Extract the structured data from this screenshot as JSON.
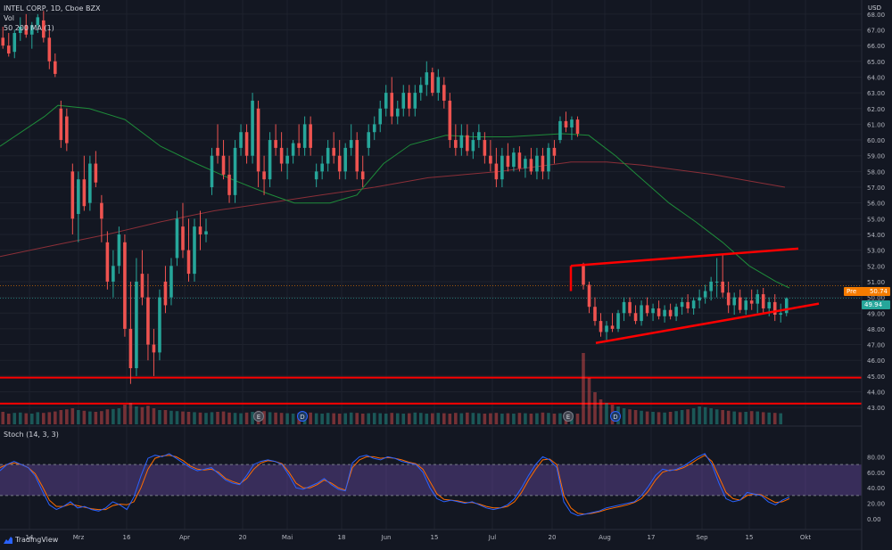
{
  "header": {
    "symbol_line": "INTEL CORP, 1D, Cboe BZX",
    "vol_label": "Vol",
    "ma_label": "50 200 MA (1)"
  },
  "stoch_label": "Stoch (14, 3, 3)",
  "currency": "USD",
  "brand": "TradingView",
  "price_tags": {
    "pre_label": "Pre",
    "pre_value": "50.74",
    "last_value": "49.94"
  },
  "colors": {
    "background": "#131722",
    "up": "#26a69a",
    "down": "#ef5350",
    "ma50": "#1e8c3a",
    "ma200": "#8b2f38",
    "stoch_k": "#2962ff",
    "stoch_d": "#ff6d00",
    "stoch_band": "#7e57c2",
    "trendline": "#ff0000"
  },
  "chart_data": {
    "type": "candlestick",
    "y_axis_ticks": [
      "68.00",
      "67.00",
      "66.00",
      "65.00",
      "64.00",
      "63.00",
      "62.00",
      "61.00",
      "60.00",
      "59.00",
      "58.00",
      "57.00",
      "56.00",
      "55.00",
      "54.00",
      "53.00",
      "52.00",
      "51.00",
      "50.00",
      "49.00",
      "48.00",
      "47.00",
      "46.00",
      "45.00",
      "44.00",
      "43.00"
    ],
    "ylim": [
      42.5,
      68.5
    ],
    "x_axis_ticks": [
      "14",
      "Mrz",
      "16",
      "Apr",
      "20",
      "Mai",
      "18",
      "Jun",
      "15",
      "Jul",
      "20",
      "Aug",
      "17",
      "Sep",
      "15",
      "Okt"
    ],
    "stoch_ticks": [
      "80.00",
      "60.00",
      "40.00",
      "20.00",
      "0.00"
    ],
    "stoch_bands": [
      20,
      80
    ],
    "earnings_markers": [
      "E",
      "D",
      "E",
      "D"
    ],
    "horizontal_lines": [
      44.9,
      43.25
    ],
    "candles": [
      [
        66.5,
        67.2,
        65.8,
        66.0
      ],
      [
        66.0,
        66.8,
        65.3,
        65.5
      ],
      [
        65.6,
        67.0,
        65.2,
        66.8
      ],
      [
        66.8,
        67.8,
        66.3,
        67.2
      ],
      [
        67.3,
        68.0,
        66.5,
        66.7
      ],
      [
        66.7,
        67.5,
        65.8,
        67.3
      ],
      [
        67.3,
        68.0,
        66.8,
        67.8
      ],
      [
        67.6,
        68.2,
        66.2,
        66.5
      ],
      [
        66.5,
        67.0,
        64.5,
        65.0
      ],
      [
        65.0,
        65.5,
        64.0,
        64.2
      ],
      [
        62.0,
        62.5,
        59.5,
        60.0
      ],
      [
        61.5,
        62.0,
        59.3,
        59.8
      ],
      [
        58.0,
        58.5,
        54.0,
        55.0
      ],
      [
        55.3,
        58.0,
        53.5,
        57.5
      ],
      [
        57.5,
        59.0,
        55.5,
        55.8
      ],
      [
        56.0,
        59.0,
        55.5,
        58.5
      ],
      [
        58.5,
        59.3,
        57.0,
        57.3
      ],
      [
        56.0,
        56.5,
        53.5,
        55.0
      ],
      [
        53.5,
        54.2,
        50.5,
        51.0
      ],
      [
        51.0,
        53.0,
        50.0,
        52.0
      ],
      [
        52.0,
        54.5,
        51.5,
        54.0
      ],
      [
        53.5,
        54.0,
        47.5,
        48.0
      ],
      [
        48.0,
        51.0,
        44.5,
        45.5
      ],
      [
        45.5,
        52.5,
        45.0,
        51.0
      ],
      [
        51.5,
        53.0,
        49.5,
        50.0
      ],
      [
        50.0,
        51.5,
        46.0,
        47.0
      ],
      [
        47.0,
        48.0,
        45.0,
        46.5
      ],
      [
        46.5,
        50.5,
        46.0,
        50.0
      ],
      [
        51.0,
        52.0,
        49.0,
        49.5
      ],
      [
        50.0,
        52.5,
        49.5,
        52.0
      ],
      [
        52.5,
        55.5,
        52.0,
        55.0
      ],
      [
        54.5,
        56.0,
        52.5,
        53.0
      ],
      [
        53.0,
        55.0,
        51.0,
        51.5
      ],
      [
        51.5,
        55.0,
        51.0,
        54.5
      ],
      [
        54.5,
        55.5,
        53.0,
        54.0
      ],
      [
        54.0,
        55.0,
        53.5,
        54.2
      ],
      [
        57.0,
        59.5,
        56.5,
        59.0
      ],
      [
        59.5,
        61.0,
        58.5,
        59.0
      ],
      [
        59.0,
        60.0,
        57.5,
        57.8
      ],
      [
        57.8,
        59.0,
        56.0,
        56.5
      ],
      [
        56.5,
        60.0,
        56.0,
        59.5
      ],
      [
        59.5,
        61.0,
        59.0,
        60.5
      ],
      [
        60.5,
        61.0,
        58.5,
        59.0
      ],
      [
        59.0,
        63.0,
        58.5,
        62.5
      ],
      [
        62.0,
        62.5,
        57.0,
        58.0
      ],
      [
        58.0,
        59.0,
        56.5,
        57.5
      ],
      [
        57.5,
        60.5,
        57.0,
        60.0
      ],
      [
        60.0,
        61.0,
        59.0,
        59.5
      ],
      [
        59.5,
        60.5,
        58.0,
        58.5
      ],
      [
        58.5,
        59.5,
        57.5,
        59.0
      ],
      [
        59.0,
        60.0,
        58.5,
        59.8
      ],
      [
        59.8,
        61.0,
        59.0,
        59.5
      ],
      [
        59.5,
        61.5,
        59.0,
        61.0
      ],
      [
        61.0,
        61.5,
        59.0,
        59.5
      ],
      [
        57.5,
        58.5,
        57.0,
        58.0
      ],
      [
        58.0,
        59.0,
        57.5,
        58.5
      ],
      [
        58.5,
        60.0,
        58.0,
        59.5
      ],
      [
        59.5,
        60.5,
        58.5,
        59.0
      ],
      [
        59.0,
        60.0,
        57.5,
        58.0
      ],
      [
        58.0,
        59.8,
        57.5,
        59.5
      ],
      [
        59.5,
        61.0,
        59.0,
        60.0
      ],
      [
        60.0,
        60.5,
        57.5,
        58.0
      ],
      [
        58.0,
        59.0,
        57.0,
        57.5
      ],
      [
        59.5,
        61.0,
        59.0,
        60.5
      ],
      [
        60.5,
        61.5,
        60.0,
        61.0
      ],
      [
        61.0,
        62.5,
        60.5,
        62.0
      ],
      [
        62.0,
        63.5,
        61.5,
        63.0
      ],
      [
        63.0,
        64.0,
        61.0,
        61.5
      ],
      [
        61.5,
        62.5,
        61.0,
        62.0
      ],
      [
        62.0,
        63.5,
        61.5,
        63.0
      ],
      [
        63.0,
        63.5,
        61.5,
        62.0
      ],
      [
        62.0,
        63.5,
        61.5,
        63.0
      ],
      [
        63.0,
        64.0,
        62.5,
        63.5
      ],
      [
        63.5,
        65.0,
        62.8,
        64.3
      ],
      [
        64.3,
        64.6,
        62.8,
        63.0
      ],
      [
        63.0,
        64.5,
        62.5,
        64.0
      ],
      [
        63.5,
        64.0,
        62.0,
        62.5
      ],
      [
        62.5,
        63.0,
        59.5,
        60.0
      ],
      [
        60.0,
        61.0,
        59.0,
        59.5
      ],
      [
        59.5,
        61.0,
        59.0,
        60.3
      ],
      [
        60.3,
        61.0,
        59.0,
        59.3
      ],
      [
        59.3,
        60.5,
        58.8,
        60.0
      ],
      [
        60.0,
        61.0,
        59.5,
        60.5
      ],
      [
        60.0,
        60.5,
        58.5,
        59.0
      ],
      [
        59.0,
        60.0,
        58.0,
        58.5
      ],
      [
        58.5,
        59.5,
        57.0,
        57.5
      ],
      [
        57.5,
        59.5,
        57.0,
        59.0
      ],
      [
        59.0,
        59.8,
        58.0,
        58.3
      ],
      [
        58.3,
        59.5,
        58.0,
        59.2
      ],
      [
        59.2,
        59.6,
        58.0,
        58.2
      ],
      [
        58.2,
        59.0,
        57.6,
        58.8
      ],
      [
        58.8,
        59.5,
        57.8,
        58.0
      ],
      [
        58.0,
        59.5,
        57.5,
        59.0
      ],
      [
        59.0,
        59.5,
        57.5,
        58.0
      ],
      [
        58.0,
        59.8,
        57.5,
        59.5
      ],
      [
        59.5,
        60.0,
        58.5,
        59.0
      ],
      [
        60.0,
        61.5,
        59.8,
        61.2
      ],
      [
        61.2,
        61.8,
        60.5,
        60.8
      ],
      [
        60.8,
        61.5,
        60.0,
        61.3
      ],
      [
        61.3,
        61.5,
        60.2,
        60.4
      ],
      [
        52.0,
        52.2,
        50.5,
        50.8
      ],
      [
        50.8,
        51.0,
        49.0,
        49.4
      ],
      [
        49.4,
        50.0,
        48.2,
        48.5
      ],
      [
        48.5,
        49.0,
        47.5,
        47.8
      ],
      [
        47.8,
        48.5,
        47.3,
        48.2
      ],
      [
        48.2,
        49.0,
        47.8,
        48.0
      ],
      [
        48.0,
        49.2,
        47.8,
        49.0
      ],
      [
        49.0,
        50.0,
        48.5,
        49.7
      ],
      [
        49.7,
        50.0,
        48.8,
        49.0
      ],
      [
        49.0,
        49.5,
        48.3,
        48.5
      ],
      [
        48.5,
        49.8,
        48.2,
        49.5
      ],
      [
        49.5,
        50.0,
        48.8,
        49.0
      ],
      [
        49.0,
        49.6,
        48.5,
        49.3
      ],
      [
        49.3,
        49.8,
        48.6,
        48.8
      ],
      [
        48.8,
        49.5,
        48.4,
        49.2
      ],
      [
        49.2,
        49.6,
        48.6,
        48.8
      ],
      [
        48.8,
        49.6,
        48.5,
        49.4
      ],
      [
        49.4,
        50.0,
        48.9,
        49.7
      ],
      [
        49.7,
        50.2,
        49.0,
        49.3
      ],
      [
        49.3,
        50.0,
        48.9,
        49.8
      ],
      [
        49.8,
        50.5,
        49.3,
        50.0
      ],
      [
        50.0,
        50.8,
        49.6,
        50.4
      ],
      [
        50.4,
        51.3,
        49.8,
        51.0
      ],
      [
        51.0,
        52.5,
        50.0,
        51.0
      ],
      [
        51.0,
        52.7,
        50.0,
        50.3
      ],
      [
        50.3,
        51.0,
        49.0,
        49.5
      ],
      [
        49.5,
        50.3,
        48.9,
        50.0
      ],
      [
        50.0,
        50.5,
        49.0,
        49.2
      ],
      [
        49.2,
        50.0,
        48.9,
        49.8
      ],
      [
        49.8,
        50.5,
        49.2,
        49.6
      ],
      [
        49.6,
        50.5,
        49.0,
        50.2
      ],
      [
        50.2,
        50.6,
        49.0,
        49.3
      ],
      [
        49.3,
        50.0,
        48.8,
        49.7
      ],
      [
        49.7,
        50.2,
        48.5,
        48.9
      ],
      [
        48.9,
        49.6,
        48.4,
        49.0
      ],
      [
        49.0,
        50.0,
        48.8,
        49.94
      ]
    ],
    "volume": [
      0.35,
      0.3,
      0.32,
      0.33,
      0.31,
      0.3,
      0.34,
      0.32,
      0.34,
      0.36,
      0.4,
      0.42,
      0.45,
      0.4,
      0.38,
      0.36,
      0.35,
      0.37,
      0.42,
      0.43,
      0.45,
      0.55,
      0.6,
      0.5,
      0.48,
      0.52,
      0.45,
      0.4,
      0.4,
      0.38,
      0.37,
      0.36,
      0.35,
      0.34,
      0.33,
      0.32,
      0.34,
      0.35,
      0.36,
      0.33,
      0.32,
      0.31,
      0.33,
      0.35,
      0.38,
      0.37,
      0.34,
      0.33,
      0.32,
      0.31,
      0.3,
      0.32,
      0.34,
      0.33,
      0.31,
      0.3,
      0.32,
      0.31,
      0.3,
      0.31,
      0.33,
      0.32,
      0.3,
      0.31,
      0.32,
      0.31,
      0.3,
      0.32,
      0.31,
      0.3,
      0.31,
      0.33,
      0.32,
      0.3,
      0.31,
      0.32,
      0.31,
      0.3,
      0.32,
      0.31,
      0.33,
      0.32,
      0.31,
      0.3,
      0.31,
      0.32,
      0.3,
      0.31,
      0.3,
      0.32,
      0.31,
      0.3,
      0.31,
      0.33,
      0.32,
      0.3,
      0.31,
      0.32,
      0.31,
      0.3,
      2.0,
      1.3,
      0.9,
      0.7,
      0.6,
      0.55,
      0.5,
      0.45,
      0.42,
      0.4,
      0.38,
      0.36,
      0.35,
      0.34,
      0.33,
      0.35,
      0.37,
      0.4,
      0.42,
      0.45,
      0.5,
      0.48,
      0.45,
      0.42,
      0.4,
      0.38,
      0.36,
      0.34,
      0.35,
      0.37,
      0.36,
      0.34,
      0.33,
      0.32,
      0.31
    ],
    "stoch_k": [
      62,
      70,
      74,
      70,
      66,
      55,
      36,
      18,
      12,
      16,
      22,
      14,
      16,
      12,
      10,
      14,
      22,
      18,
      12,
      28,
      55,
      78,
      82,
      80,
      84,
      78,
      72,
      66,
      62,
      64,
      66,
      58,
      50,
      46,
      44,
      56,
      70,
      74,
      76,
      74,
      70,
      56,
      40,
      38,
      42,
      46,
      52,
      44,
      38,
      36,
      72,
      80,
      82,
      78,
      76,
      80,
      78,
      74,
      72,
      70,
      60,
      40,
      26,
      22,
      24,
      22,
      20,
      22,
      18,
      14,
      12,
      14,
      18,
      26,
      40,
      56,
      70,
      80,
      76,
      66,
      22,
      8,
      4,
      6,
      8,
      10,
      14,
      16,
      18,
      20,
      22,
      30,
      42,
      56,
      64,
      62,
      64,
      68,
      74,
      80,
      84,
      70,
      46,
      26,
      22,
      24,
      34,
      32,
      30,
      22,
      18,
      24,
      28
    ],
    "stoch_d": [
      66,
      70,
      72,
      70,
      66,
      58,
      42,
      24,
      16,
      16,
      19,
      17,
      15,
      13,
      12,
      12,
      17,
      19,
      18,
      22,
      40,
      64,
      78,
      81,
      82,
      80,
      75,
      68,
      64,
      63,
      64,
      60,
      52,
      48,
      45,
      52,
      64,
      72,
      75,
      74,
      71,
      60,
      46,
      40,
      40,
      44,
      50,
      46,
      40,
      37,
      66,
      76,
      80,
      80,
      78,
      79,
      78,
      76,
      73,
      71,
      64,
      48,
      32,
      25,
      24,
      23,
      21,
      21,
      19,
      16,
      14,
      14,
      16,
      22,
      34,
      50,
      64,
      76,
      77,
      70,
      30,
      14,
      7,
      6,
      7,
      9,
      12,
      14,
      16,
      18,
      21,
      26,
      36,
      50,
      60,
      63,
      63,
      66,
      71,
      77,
      82,
      74,
      54,
      34,
      26,
      24,
      30,
      32,
      31,
      26,
      21,
      22,
      26
    ],
    "ma50": [
      [
        0.0,
        59.6
      ],
      [
        0.05,
        61.5
      ],
      [
        0.065,
        62.2
      ],
      [
        0.1,
        62.0
      ],
      [
        0.14,
        61.3
      ],
      [
        0.18,
        59.6
      ],
      [
        0.22,
        58.5
      ],
      [
        0.26,
        57.5
      ],
      [
        0.3,
        56.6
      ],
      [
        0.33,
        56.0
      ],
      [
        0.37,
        56.0
      ],
      [
        0.4,
        56.5
      ],
      [
        0.43,
        58.5
      ],
      [
        0.46,
        59.7
      ],
      [
        0.5,
        60.3
      ],
      [
        0.53,
        60.2
      ],
      [
        0.57,
        60.2
      ],
      [
        0.6,
        60.3
      ],
      [
        0.63,
        60.4
      ],
      [
        0.66,
        60.3
      ],
      [
        0.69,
        59.0
      ],
      [
        0.72,
        57.5
      ],
      [
        0.75,
        56.0
      ],
      [
        0.78,
        54.8
      ],
      [
        0.81,
        53.5
      ],
      [
        0.84,
        52.0
      ],
      [
        0.87,
        51.0
      ],
      [
        0.885,
        50.6
      ]
    ],
    "ma200": [
      [
        0.0,
        52.6
      ],
      [
        0.06,
        53.3
      ],
      [
        0.12,
        54.0
      ],
      [
        0.18,
        54.8
      ],
      [
        0.24,
        55.5
      ],
      [
        0.3,
        56.0
      ],
      [
        0.36,
        56.5
      ],
      [
        0.42,
        57.0
      ],
      [
        0.48,
        57.6
      ],
      [
        0.52,
        57.8
      ],
      [
        0.56,
        58.0
      ],
      [
        0.6,
        58.3
      ],
      [
        0.64,
        58.6
      ],
      [
        0.68,
        58.6
      ],
      [
        0.72,
        58.4
      ],
      [
        0.76,
        58.1
      ],
      [
        0.8,
        57.8
      ],
      [
        0.84,
        57.4
      ],
      [
        0.88,
        57.0
      ]
    ],
    "trendlines": [
      [
        [
          0.64,
          52.0
        ],
        [
          0.895,
          53.1
        ]
      ],
      [
        [
          0.668,
          47.1
        ],
        [
          0.918,
          49.6
        ]
      ],
      [
        [
          0.64,
          52.0
        ],
        [
          0.64,
          50.4
        ]
      ]
    ]
  }
}
